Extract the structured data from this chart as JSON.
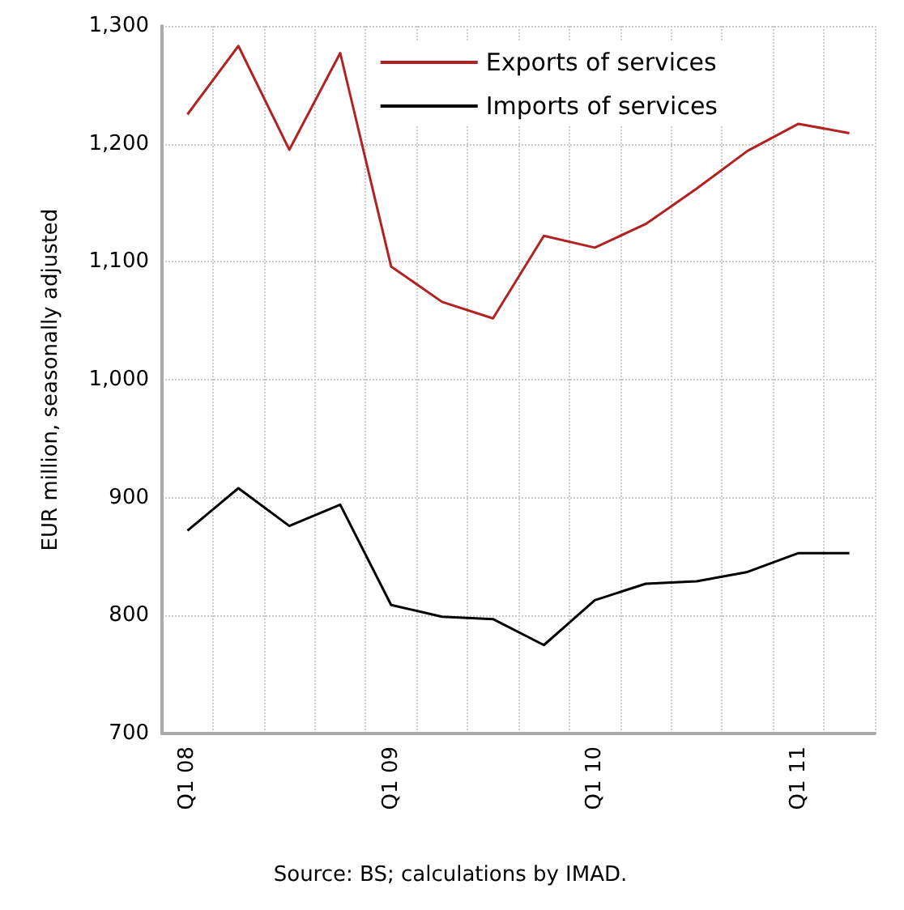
{
  "chart_data": {
    "type": "line",
    "ylabel": "EUR million, seasonally adjusted",
    "categories": [
      "Q1 08",
      null,
      null,
      null,
      "Q1 09",
      null,
      null,
      null,
      "Q1 10",
      null,
      null,
      null,
      "Q1 11",
      null
    ],
    "series": [
      {
        "name": "Exports of services",
        "color": "#b22222",
        "values": [
          1225,
          1283,
          1195,
          1277,
          1096,
          1066,
          1052,
          1122,
          1112,
          1132,
          1162,
          1194,
          1217,
          1209
        ]
      },
      {
        "name": "Imports of services",
        "color": "#000000",
        "values": [
          872,
          908,
          876,
          894,
          809,
          799,
          797,
          775,
          813,
          827,
          829,
          837,
          853,
          853
        ]
      }
    ],
    "ylim": [
      700,
      1300
    ],
    "yticks": [
      700,
      800,
      900,
      {
        "value": 1000,
        "label": "1,000"
      },
      {
        "value": 1100,
        "label": "1,100"
      },
      {
        "value": 1200,
        "label": "1,200"
      },
      {
        "value": 1300,
        "label": "1,300"
      }
    ],
    "grid": true,
    "legend": "top right",
    "marker": "none",
    "line_style": "solid",
    "annotations": [
      "Source: BS; calculations by IMAD."
    ]
  }
}
